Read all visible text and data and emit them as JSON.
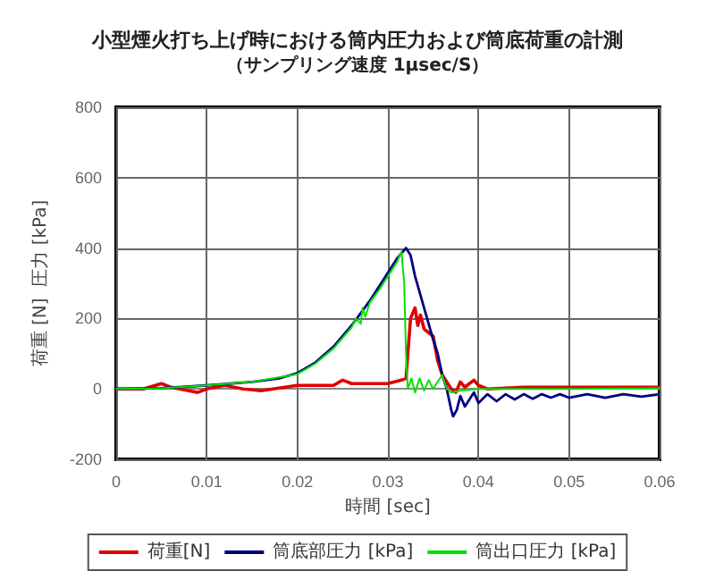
{
  "chart_data": {
    "type": "line",
    "title": "小型煙火打ち上げ時における筒内圧力および筒底荷重の計測",
    "subtitle": "（サンプリング速度 1μsec/S）",
    "xlabel": "時間 [sec]",
    "ylabel": "荷重 [N]  圧力 [kPa]",
    "xlim": [
      0,
      0.06
    ],
    "xticks": [
      0,
      0.01,
      0.02,
      0.03,
      0.04,
      0.05,
      0.06
    ],
    "ylim": [
      -200,
      800
    ],
    "yticks": [
      -200,
      0,
      200,
      400,
      600,
      800
    ],
    "grid": true,
    "legend": "bottom",
    "marker": "none",
    "line_style": "solid",
    "series": [
      {
        "name": "荷重[N]",
        "color": "#e00000",
        "x": [
          0,
          0.003,
          0.005,
          0.006,
          0.008,
          0.009,
          0.01,
          0.012,
          0.014,
          0.016,
          0.02,
          0.024,
          0.025,
          0.026,
          0.03,
          0.0315,
          0.032,
          0.0325,
          0.033,
          0.0333,
          0.0336,
          0.034,
          0.035,
          0.0355,
          0.036,
          0.037,
          0.0375,
          0.038,
          0.0385,
          0.039,
          0.0395,
          0.04,
          0.041,
          0.045,
          0.05,
          0.055,
          0.06
        ],
        "values": [
          0,
          0,
          15,
          5,
          -5,
          -10,
          0,
          10,
          0,
          -5,
          10,
          10,
          25,
          15,
          15,
          25,
          30,
          200,
          230,
          180,
          210,
          170,
          150,
          80,
          40,
          0,
          -10,
          20,
          5,
          15,
          25,
          10,
          0,
          5,
          5,
          5,
          5
        ]
      },
      {
        "name": "筒底部圧力 [kPa]",
        "color": "#000080",
        "x": [
          0,
          0.005,
          0.01,
          0.015,
          0.018,
          0.02,
          0.022,
          0.024,
          0.026,
          0.028,
          0.029,
          0.03,
          0.031,
          0.032,
          0.0325,
          0.033,
          0.034,
          0.035,
          0.0355,
          0.036,
          0.0365,
          0.037,
          0.0372,
          0.0376,
          0.038,
          0.0385,
          0.039,
          0.0395,
          0.04,
          0.041,
          0.042,
          0.043,
          0.044,
          0.045,
          0.046,
          0.047,
          0.048,
          0.049,
          0.05,
          0.052,
          0.054,
          0.056,
          0.058,
          0.06
        ],
        "values": [
          0,
          2,
          10,
          20,
          30,
          45,
          75,
          120,
          180,
          250,
          290,
          330,
          370,
          400,
          380,
          320,
          230,
          140,
          100,
          40,
          0,
          -60,
          -78,
          -60,
          -20,
          -50,
          -30,
          -10,
          -40,
          -15,
          -35,
          -15,
          -30,
          -15,
          -28,
          -15,
          -25,
          -15,
          -25,
          -15,
          -25,
          -15,
          -22,
          -15
        ]
      },
      {
        "name": "筒出口圧力 [kPa]",
        "color": "#00e000",
        "x": [
          0,
          0.005,
          0.01,
          0.015,
          0.02,
          0.022,
          0.024,
          0.026,
          0.0265,
          0.027,
          0.0272,
          0.0275,
          0.028,
          0.029,
          0.03,
          0.031,
          0.0315,
          0.0318,
          0.032,
          0.0322,
          0.0326,
          0.033,
          0.0335,
          0.034,
          0.0345,
          0.035,
          0.0355,
          0.036,
          0.0365,
          0.037,
          0.038,
          0.04,
          0.05,
          0.06
        ],
        "values": [
          0,
          2,
          10,
          20,
          42,
          72,
          115,
          175,
          200,
          185,
          230,
          205,
          245,
          280,
          320,
          360,
          390,
          300,
          100,
          0,
          30,
          -10,
          30,
          -5,
          25,
          0,
          20,
          40,
          0,
          -10,
          -5,
          0,
          0,
          2
        ]
      }
    ]
  }
}
